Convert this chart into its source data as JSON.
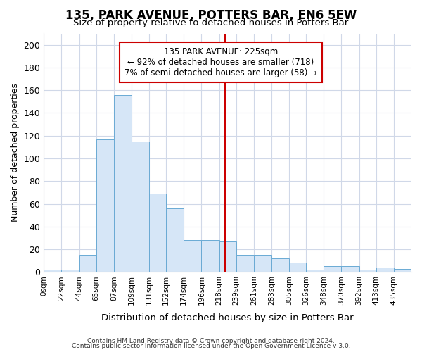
{
  "title": "135, PARK AVENUE, POTTERS BAR, EN6 5EW",
  "subtitle": "Size of property relative to detached houses in Potters Bar",
  "xlabel": "Distribution of detached houses by size in Potters Bar",
  "ylabel": "Number of detached properties",
  "bar_color": "#d6e6f7",
  "bar_edge_color": "#6aaad4",
  "bg_color": "#ffffff",
  "grid_color": "#d0d8e8",
  "annotation_box_color": "#ffffff",
  "annotation_box_edge": "#cc0000",
  "vline_color": "#cc0000",
  "vline_x": 225,
  "annotation_title": "135 PARK AVENUE: 225sqm",
  "annotation_line1": "← 92% of detached houses are smaller (718)",
  "annotation_line2": "7% of semi-detached houses are larger (58) →",
  "bin_edges": [
    0,
    22,
    44,
    65,
    87,
    109,
    131,
    152,
    174,
    196,
    218,
    239,
    261,
    283,
    305,
    326,
    348,
    370,
    392,
    413,
    435,
    457
  ],
  "bin_labels": [
    "0sqm",
    "22sqm",
    "44sqm",
    "65sqm",
    "87sqm",
    "109sqm",
    "131sqm",
    "152sqm",
    "174sqm",
    "196sqm",
    "218sqm",
    "239sqm",
    "261sqm",
    "283sqm",
    "305sqm",
    "326sqm",
    "348sqm",
    "370sqm",
    "392sqm",
    "413sqm",
    "435sqm"
  ],
  "bar_heights": [
    2,
    2,
    15,
    117,
    156,
    115,
    69,
    56,
    28,
    28,
    27,
    15,
    15,
    12,
    8,
    2,
    5,
    5,
    2,
    4,
    3
  ],
  "ylim": [
    0,
    210
  ],
  "yticks": [
    0,
    20,
    40,
    60,
    80,
    100,
    120,
    140,
    160,
    180,
    200
  ],
  "footer1": "Contains HM Land Registry data © Crown copyright and database right 2024.",
  "footer2": "Contains public sector information licensed under the Open Government Licence v 3.0."
}
